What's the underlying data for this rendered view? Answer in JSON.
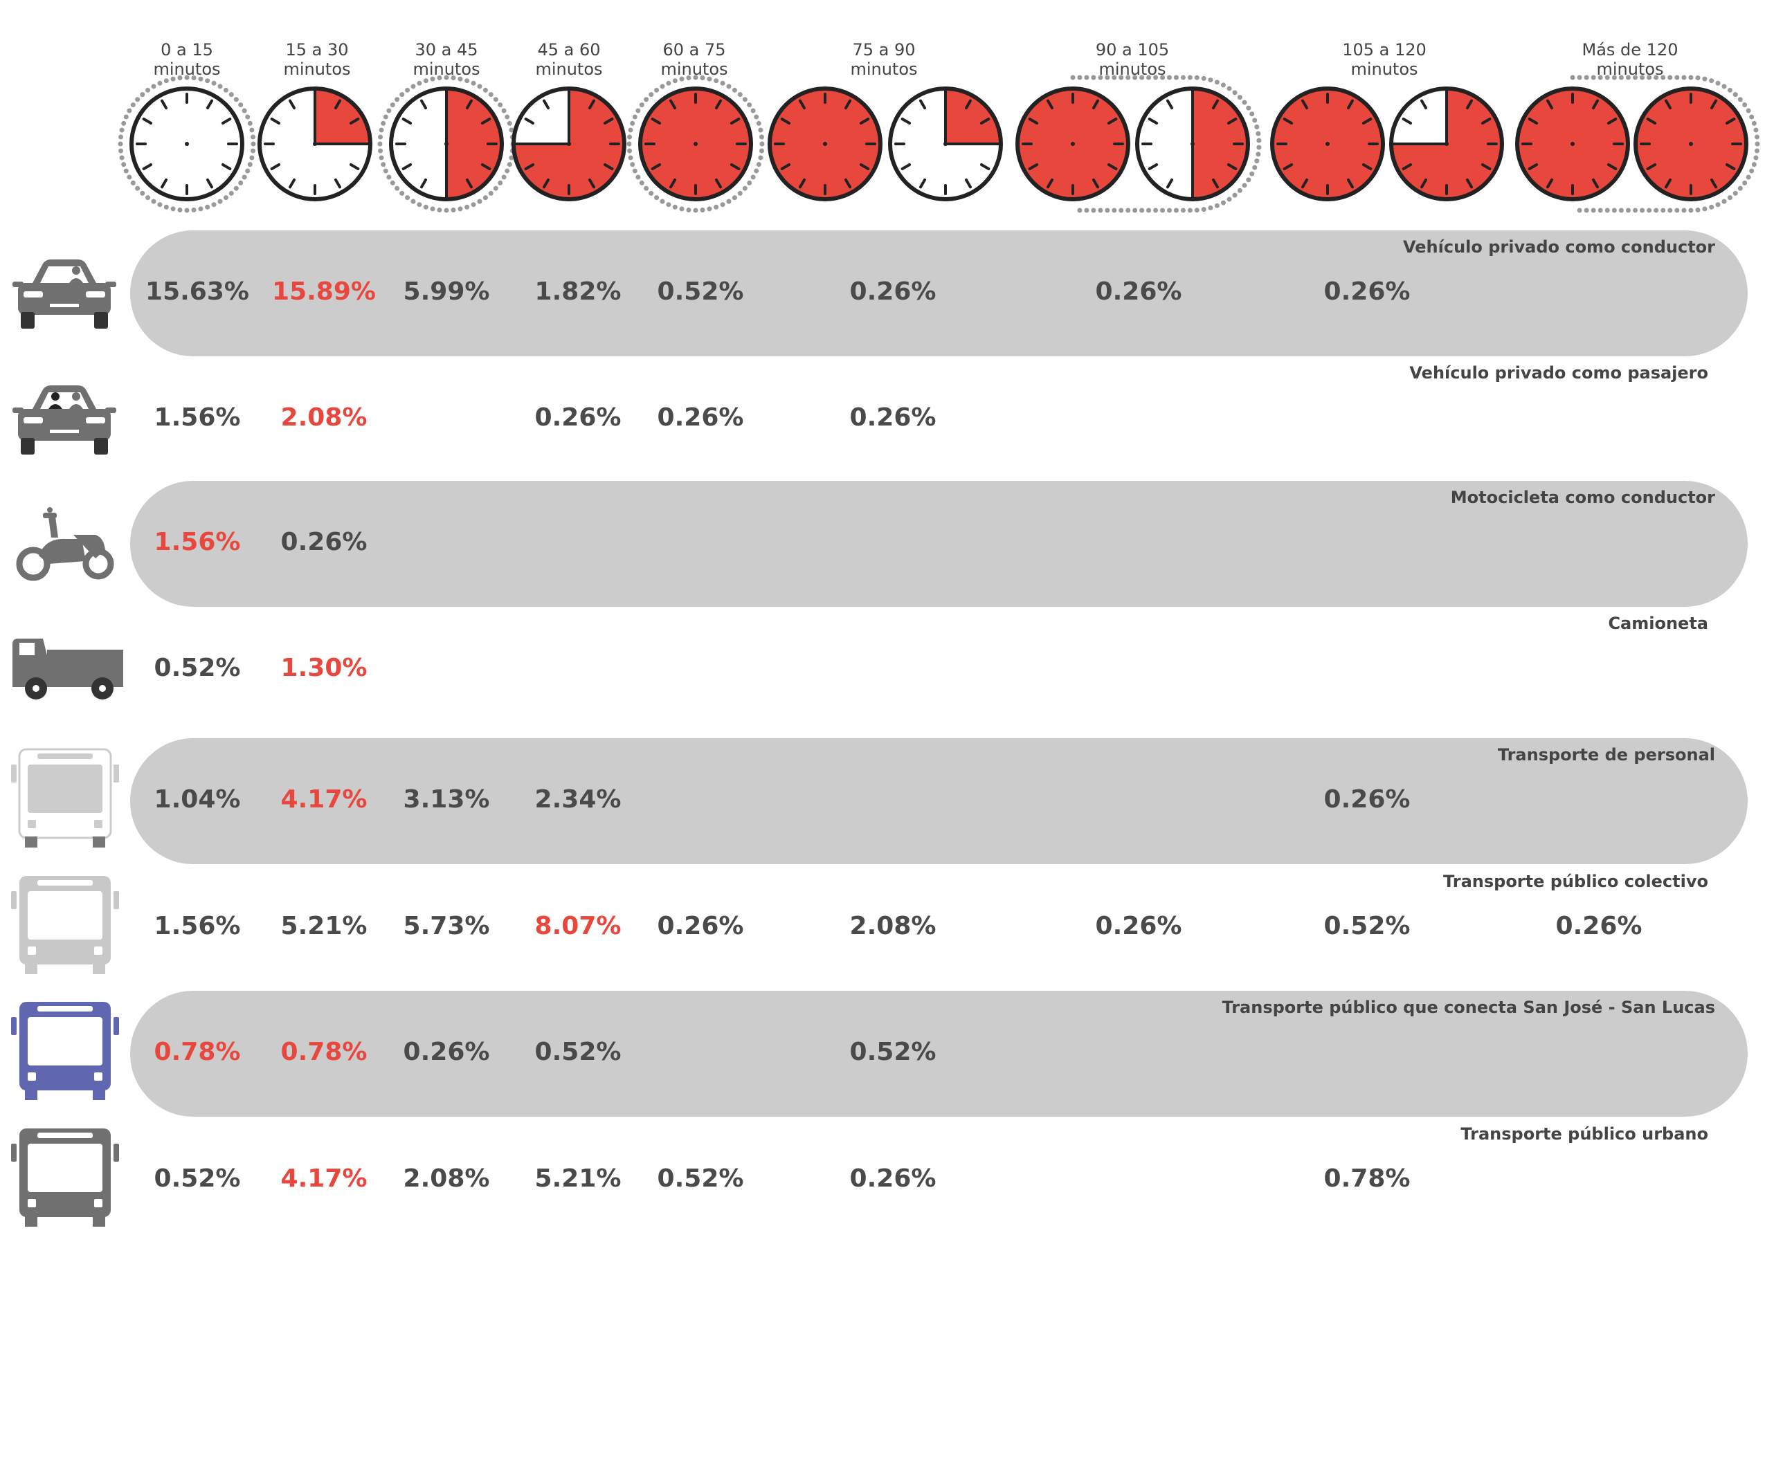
{
  "chart_data": {
    "type": "table",
    "title": "",
    "columns": [
      "0 a 15\nminutos",
      "15 a 30\nminutos",
      "30 a 45\nminutos",
      "45 a 60\nminutos",
      "60 a 75\nminutos",
      "75 a 90\nminutos",
      "90 a 105\nminutos",
      "105 a 120\nminutos",
      "Más de 120\nminutos"
    ],
    "clock_fill_fraction": [
      0,
      0.25,
      0.5,
      0.75,
      1,
      1.25,
      1.5,
      1.75,
      2
    ],
    "rows": [
      {
        "name": "Vehículo privado como conductor",
        "icon": "car-driver-icon",
        "band": true,
        "values": [
          "15.63%",
          "15.89%",
          "5.99%",
          "1.82%",
          "0.52%",
          "0.26%",
          "0.26%",
          "0.26%",
          ""
        ],
        "highlight": 1
      },
      {
        "name": "Vehículo privado como pasajero",
        "icon": "car-passenger-icon",
        "band": false,
        "values": [
          "1.56%",
          "2.08%",
          "",
          "0.26%",
          "0.26%",
          "0.26%",
          "",
          "",
          ""
        ],
        "highlight": 1
      },
      {
        "name": "Motocicleta como conductor",
        "icon": "motorcycle-icon",
        "band": true,
        "values": [
          "1.56%",
          "0.26%",
          "",
          "",
          "",
          "",
          "",
          "",
          ""
        ],
        "highlight": 0
      },
      {
        "name": "Camioneta",
        "icon": "pickup-truck-icon",
        "band": false,
        "values": [
          "0.52%",
          "1.30%",
          "",
          "",
          "",
          "",
          "",
          "",
          ""
        ],
        "highlight": 1
      },
      {
        "name": "Transporte de personal",
        "icon": "staff-bus-icon",
        "band": true,
        "values": [
          "1.04%",
          "4.17%",
          "3.13%",
          "2.34%",
          "",
          "",
          "",
          "0.26%",
          ""
        ],
        "highlight": 1
      },
      {
        "name": "Transporte público colectivo",
        "icon": "collective-bus-icon",
        "band": false,
        "values": [
          "1.56%",
          "5.21%",
          "5.73%",
          "8.07%",
          "0.26%",
          "2.08%",
          "0.26%",
          "0.52%",
          "0.26%"
        ],
        "highlight": 3
      },
      {
        "name": "Transporte público que conecta San José - San Lucas",
        "icon": "intercity-bus-icon",
        "band": true,
        "values": [
          "0.78%",
          "0.78%",
          "0.26%",
          "0.52%",
          "",
          "0.52%",
          "",
          "",
          ""
        ],
        "highlight": [
          0,
          1
        ]
      },
      {
        "name": "Transporte público urbano",
        "icon": "urban-bus-icon",
        "band": false,
        "values": [
          "0.52%",
          "4.17%",
          "2.08%",
          "5.21%",
          "0.52%",
          "0.26%",
          "",
          "0.78%",
          ""
        ],
        "highlight": 1
      }
    ]
  },
  "colors": {
    "accent": "#e8473d",
    "band": "#cccccc",
    "text": "#4a4a4a",
    "icon_gray": "#707070",
    "icon_light": "#c8c8c8",
    "icon_blue": "#6066b0"
  }
}
